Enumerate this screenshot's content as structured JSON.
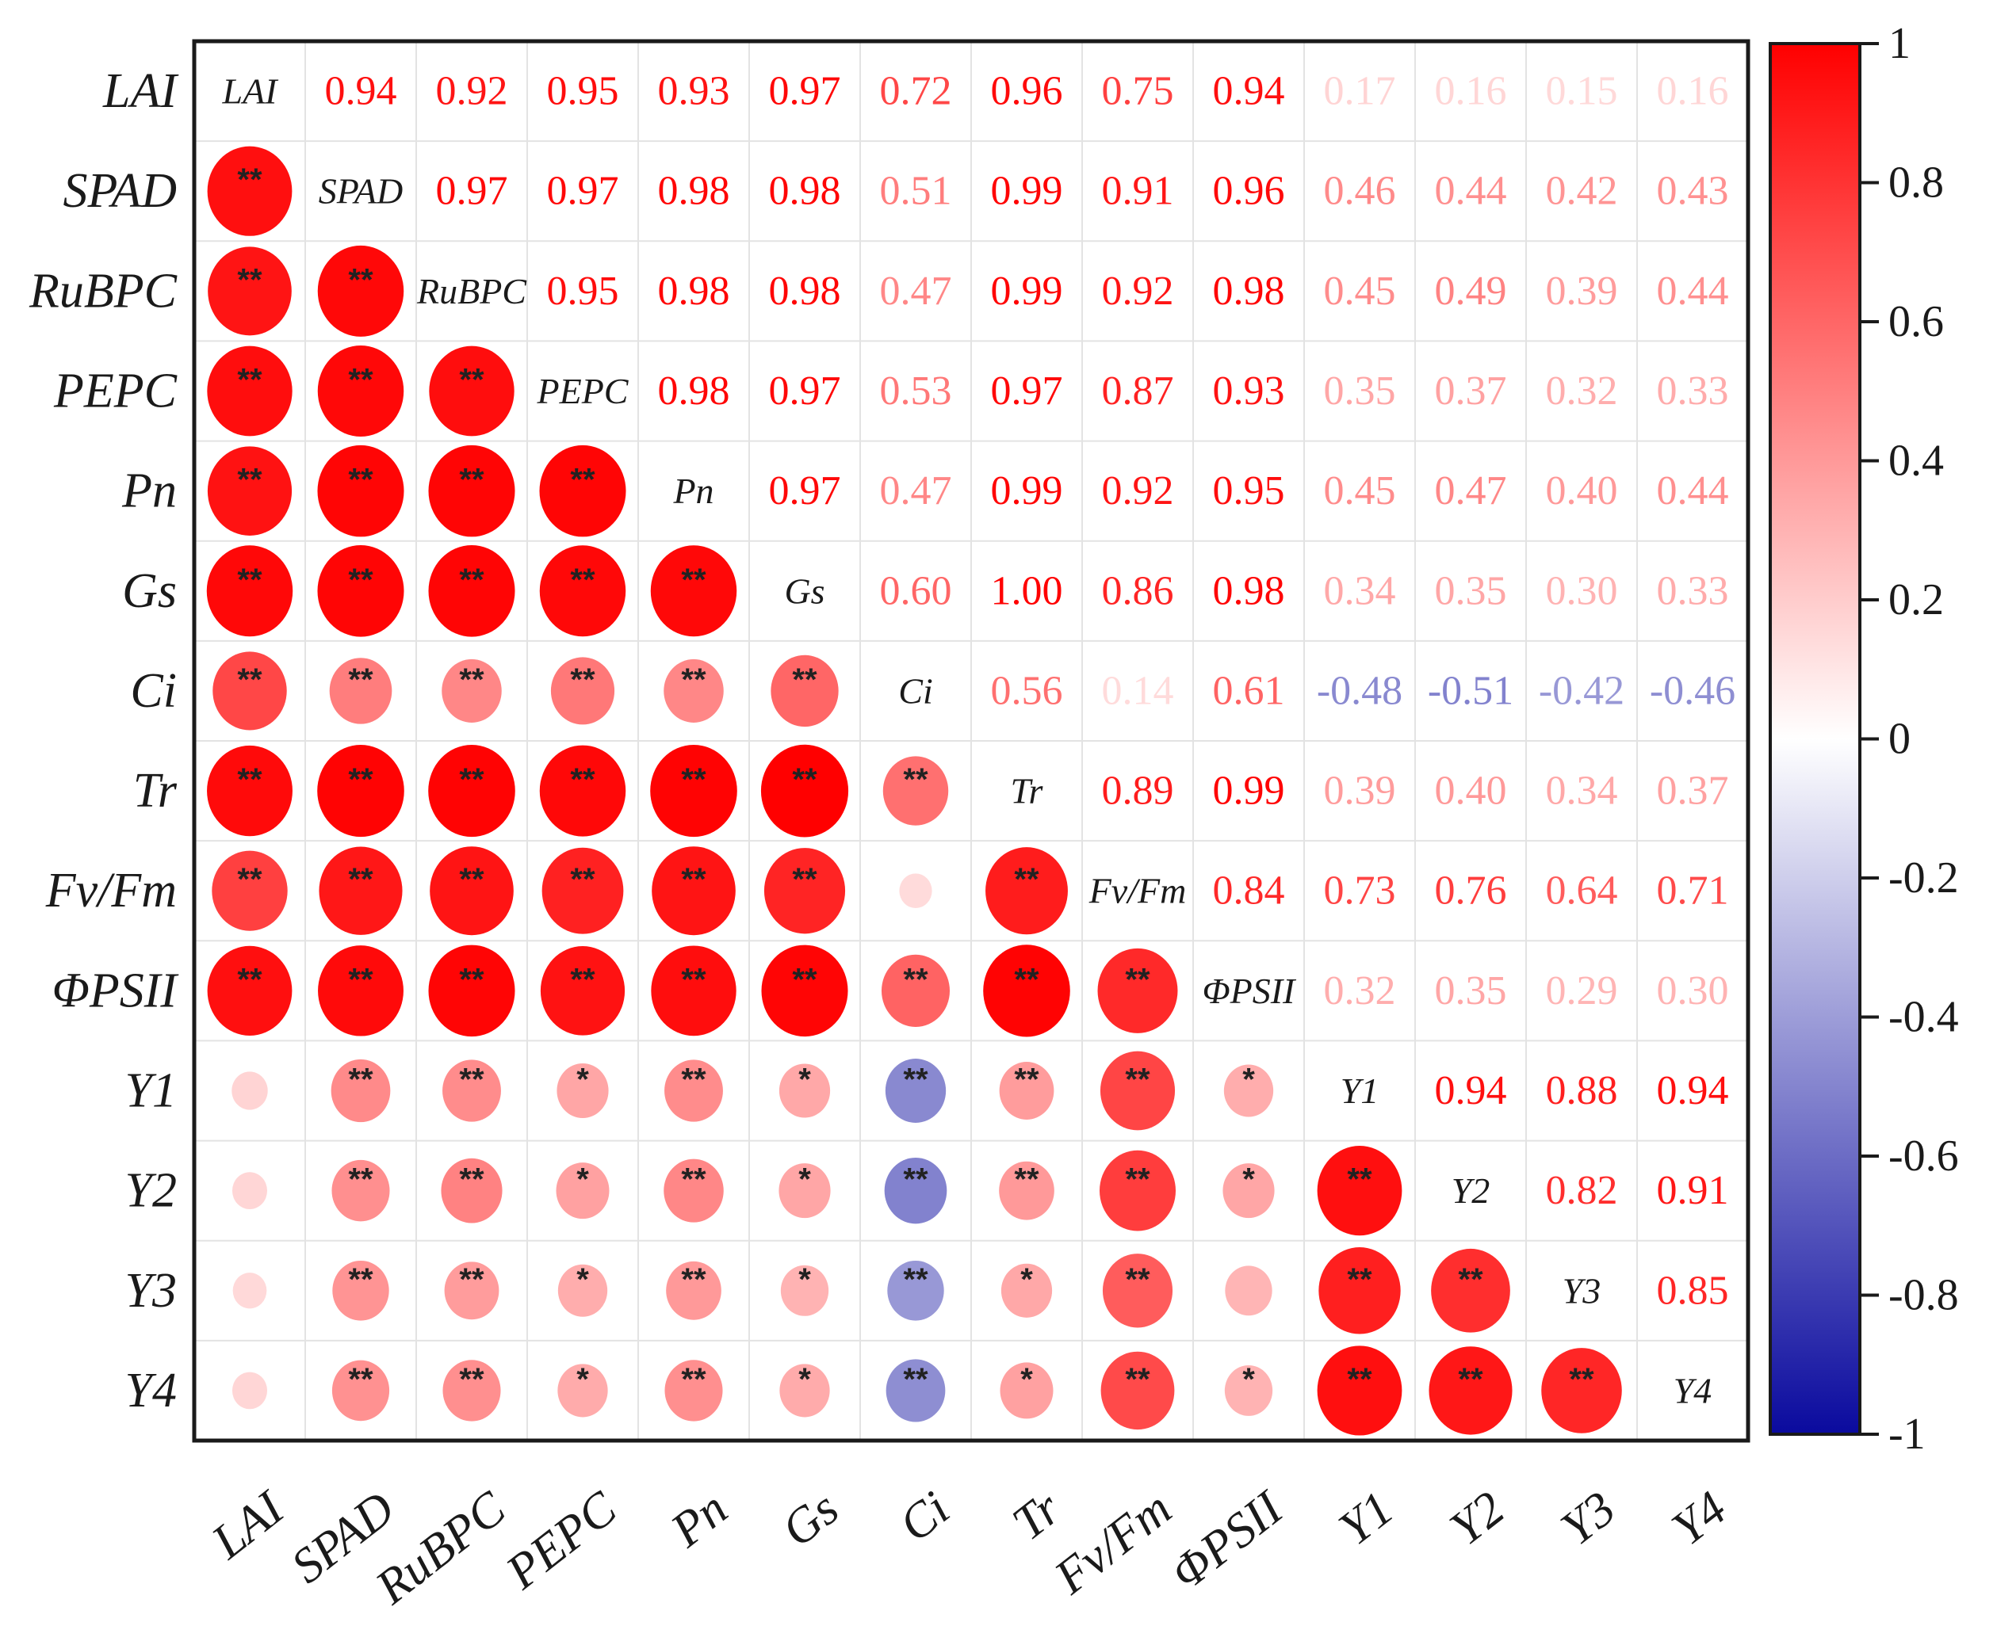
{
  "chart_data": {
    "type": "heatmap",
    "variables": [
      "LAI",
      "SPAD",
      "RuBPC",
      "PEPC",
      "Pn",
      "Gs",
      "Ci",
      "Tr",
      "Fv/Fm",
      "ΦPSII",
      "Y1",
      "Y2",
      "Y3",
      "Y4"
    ],
    "upper_triangle": "numbers",
    "lower_triangle": "circles sized and colored by correlation, with significance stars",
    "values": [
      [
        1,
        0.94,
        0.92,
        0.95,
        0.93,
        0.97,
        0.72,
        0.96,
        0.75,
        0.94,
        0.17,
        0.16,
        0.15,
        0.16
      ],
      [
        0.94,
        1,
        0.97,
        0.97,
        0.98,
        0.98,
        0.51,
        0.99,
        0.91,
        0.96,
        0.46,
        0.44,
        0.42,
        0.43
      ],
      [
        0.92,
        0.97,
        1,
        0.95,
        0.98,
        0.98,
        0.47,
        0.99,
        0.92,
        0.98,
        0.45,
        0.49,
        0.39,
        0.44
      ],
      [
        0.95,
        0.97,
        0.95,
        1,
        0.98,
        0.97,
        0.53,
        0.97,
        0.87,
        0.93,
        0.35,
        0.37,
        0.32,
        0.33
      ],
      [
        0.93,
        0.98,
        0.98,
        0.98,
        1,
        0.97,
        0.47,
        0.99,
        0.92,
        0.95,
        0.45,
        0.47,
        0.4,
        0.44
      ],
      [
        0.97,
        0.98,
        0.98,
        0.97,
        0.97,
        1,
        0.6,
        1.0,
        0.86,
        0.98,
        0.34,
        0.35,
        0.3,
        0.33
      ],
      [
        0.72,
        0.51,
        0.47,
        0.53,
        0.47,
        0.6,
        1,
        0.56,
        0.14,
        0.61,
        -0.48,
        -0.51,
        -0.42,
        -0.46
      ],
      [
        0.96,
        0.99,
        0.99,
        0.97,
        0.99,
        1.0,
        0.56,
        1,
        0.89,
        0.99,
        0.39,
        0.4,
        0.34,
        0.37
      ],
      [
        0.75,
        0.91,
        0.92,
        0.87,
        0.92,
        0.86,
        0.14,
        0.89,
        1,
        0.84,
        0.73,
        0.76,
        0.64,
        0.71
      ],
      [
        0.94,
        0.96,
        0.98,
        0.93,
        0.95,
        0.98,
        0.61,
        0.99,
        0.84,
        1,
        0.32,
        0.35,
        0.29,
        0.3
      ],
      [
        0.17,
        0.46,
        0.45,
        0.35,
        0.45,
        0.34,
        -0.48,
        0.39,
        0.73,
        0.32,
        1,
        0.94,
        0.88,
        0.94
      ],
      [
        0.16,
        0.44,
        0.49,
        0.37,
        0.47,
        0.35,
        -0.51,
        0.4,
        0.76,
        0.35,
        0.94,
        1,
        0.82,
        0.91
      ],
      [
        0.15,
        0.42,
        0.39,
        0.32,
        0.4,
        0.3,
        -0.42,
        0.34,
        0.64,
        0.29,
        0.88,
        0.82,
        1,
        0.85
      ],
      [
        0.16,
        0.43,
        0.44,
        0.33,
        0.44,
        0.33,
        -0.46,
        0.37,
        0.71,
        0.3,
        0.94,
        0.91,
        0.85,
        1
      ]
    ],
    "significance_lower": [
      [
        "",
        "",
        "",
        "",
        "",
        "",
        "",
        "",
        "",
        "",
        "",
        "",
        "",
        ""
      ],
      [
        "**",
        "",
        "",
        "",
        "",
        "",
        "",
        "",
        "",
        "",
        "",
        "",
        "",
        ""
      ],
      [
        "**",
        "**",
        "",
        "",
        "",
        "",
        "",
        "",
        "",
        "",
        "",
        "",
        "",
        ""
      ],
      [
        "**",
        "**",
        "**",
        "",
        "",
        "",
        "",
        "",
        "",
        "",
        "",
        "",
        "",
        ""
      ],
      [
        "**",
        "**",
        "**",
        "**",
        "",
        "",
        "",
        "",
        "",
        "",
        "",
        "",
        "",
        ""
      ],
      [
        "**",
        "**",
        "**",
        "**",
        "**",
        "",
        "",
        "",
        "",
        "",
        "",
        "",
        "",
        ""
      ],
      [
        "**",
        "**",
        "**",
        "**",
        "**",
        "**",
        "",
        "",
        "",
        "",
        "",
        "",
        "",
        ""
      ],
      [
        "**",
        "**",
        "**",
        "**",
        "**",
        "**",
        "**",
        "",
        "",
        "",
        "",
        "",
        "",
        ""
      ],
      [
        "**",
        "**",
        "**",
        "**",
        "**",
        "**",
        "",
        "**",
        "",
        "",
        "",
        "",
        "",
        ""
      ],
      [
        "**",
        "**",
        "**",
        "**",
        "**",
        "**",
        "**",
        "**",
        "**",
        "",
        "",
        "",
        "",
        ""
      ],
      [
        "",
        "**",
        "**",
        "*",
        "**",
        "*",
        "**",
        "**",
        "**",
        "*",
        "",
        "",
        "",
        ""
      ],
      [
        "",
        "**",
        "**",
        "*",
        "**",
        "*",
        "**",
        "**",
        "**",
        "*",
        "**",
        "",
        "",
        ""
      ],
      [
        "",
        "**",
        "**",
        "*",
        "**",
        "*",
        "**",
        "*",
        "**",
        "",
        "**",
        "**",
        "",
        ""
      ],
      [
        "",
        "**",
        "**",
        "*",
        "**",
        "*",
        "**",
        "*",
        "**",
        "*",
        "**",
        "**",
        "**",
        ""
      ]
    ],
    "colorbar": {
      "range": [
        -1,
        1
      ],
      "ticks": [
        "1",
        "0.8",
        "0.6",
        "0.4",
        "0.2",
        "0",
        "-0.2",
        "-0.4",
        "-0.6",
        "-0.8",
        "-1"
      ],
      "colors": {
        "low": "#0a0a9e",
        "mid": "#ffffff",
        "high": "#ff0000"
      }
    },
    "grid": true
  }
}
